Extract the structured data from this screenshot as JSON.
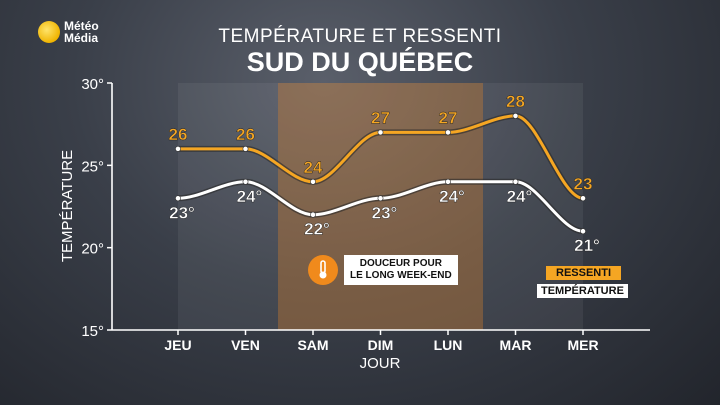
{
  "header": {
    "logo_text": "Météo\nMédia",
    "title_top": "TEMPÉRATURE ET RESSENTI",
    "title_main": "SUD DU QUÉBEC"
  },
  "badge": {
    "text": "DOUCEUR POUR\nLE LONG WEEK-END",
    "icon": "thermometer-icon"
  },
  "legend": {
    "ressenti": "RESSENTI",
    "temperature": "TEMPÉRATURE"
  },
  "colors": {
    "ressenti": "#f5a623",
    "temperature": "#ffffff",
    "highlight": "#d9822b"
  },
  "chart_data": {
    "type": "line",
    "categories": [
      "JEU",
      "VEN",
      "SAM",
      "DIM",
      "LUN",
      "MAR",
      "MER"
    ],
    "xlabel": "JOUR",
    "ylabel": "TEMPÉRATURE",
    "ylim": [
      15,
      30
    ],
    "yticks": [
      "15°",
      "20°",
      "25°",
      "30°"
    ],
    "highlight_range": [
      "SAM",
      "LUN"
    ],
    "series": [
      {
        "name": "RESSENTI",
        "values": [
          26,
          26,
          24,
          27,
          27,
          28,
          23
        ],
        "labels": [
          "26",
          "26",
          "24",
          "27",
          "27",
          "28",
          "23"
        ]
      },
      {
        "name": "TEMPÉRATURE",
        "values": [
          23,
          24,
          22,
          23,
          24,
          24,
          21
        ],
        "labels": [
          "23°",
          "24°",
          "22°",
          "23°",
          "24°",
          "24°",
          "21°"
        ]
      }
    ]
  }
}
